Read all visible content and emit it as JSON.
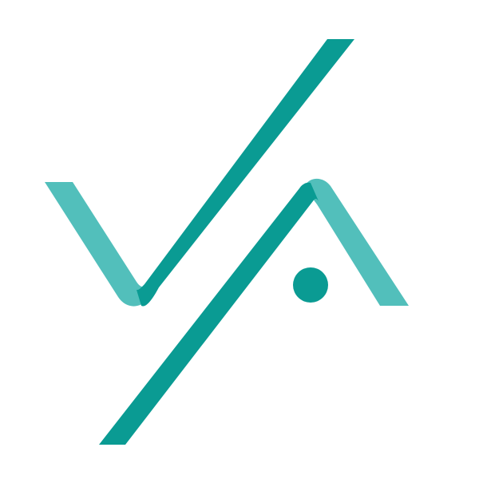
{
  "logo": {
    "icon": "va-monogram-logo",
    "colors": {
      "dark_teal": "#0a9b93",
      "light_teal": "#52bfbb",
      "background": "#ffffff"
    }
  }
}
